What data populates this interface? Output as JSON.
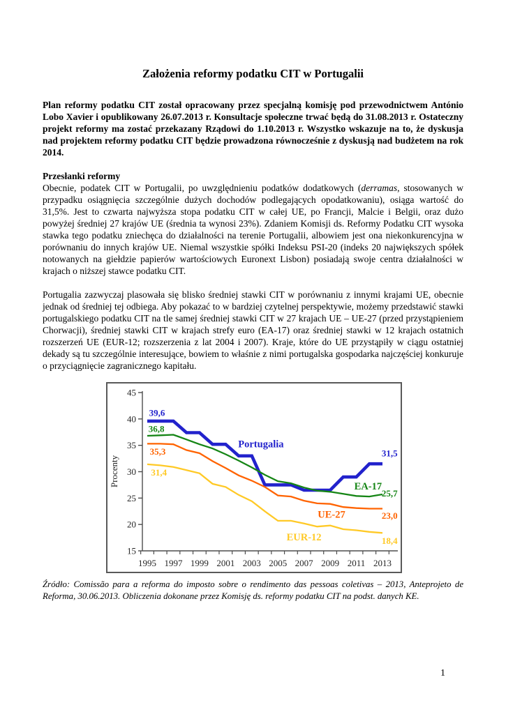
{
  "doc": {
    "title": "Założenia reformy podatku CIT w Portugalii",
    "intro": "Plan reformy podatku CIT został opracowany przez specjalną komisję pod przewodnictwem António Lobo Xavier i opublikowany 26.07.2013 r. Konsultacje społeczne trwać będą do 31.08.2013 r. Ostateczny projekt reformy ma zostać przekazany Rządowi do 1.10.2013 r. Wszystko wskazuje na to, że dyskusja nad projektem reformy podatku CIT będzie prowadzona równocześnie z dyskusją nad budżetem na rok 2014.",
    "section_heading": "Przesłanki reformy",
    "para1": {
      "before": "Obecnie, podatek CIT w Portugalii, po uwzględnieniu podatków dodatkowych (",
      "italic": "derramas",
      "after": ", stosowanych w przypadku osiągnięcia szczególnie dużych dochodów podlegających opodatkowaniu), osiąga wartość do 31,5%. Jest to czwarta najwyższa stopa podatku CIT w całej UE, po Francji, Malcie i Belgii, oraz dużo powyżej średniej 27 krajów UE (średnia ta wynosi 23%). Zdaniem Komisji ds. Reformy Podatku CIT wysoka stawka tego podatku zniechęca do działalności na terenie Portugalii, albowiem jest ona niekonkurencyjna w porównaniu do innych krajów UE. Niemal wszystkie spółki Indeksu PSI-20 (indeks 20 największych spółek notowanych na giełdzie papierów wartościowych Euronext Lisbon) posiadają swoje centra działalności w krajach o niższej stawce podatku CIT."
    },
    "para2": "Portugalia zazwyczaj plasowała się blisko średniej stawki CIT w porównaniu z innymi krajami UE, obecnie jednak od średniej tej odbiega. Aby pokazać to w bardziej czytelnej perspektywie, możemy przedstawić stawki portugalskiego podatku CIT na tle samej średniej stawki CIT w 27 krajach UE – UE-27 (przed przystąpieniem Chorwacji), średniej stawki CIT w krajach strefy euro (EA-17) oraz średniej stawki w 12 krajach ostatnich rozszerzeń UE (EUR-12; rozszerzenia z lat 2004 i 2007). Kraje, które do UE przystąpiły w ciągu ostatniej dekady są tu szczególnie interesujące, bowiem to właśnie z nimi portugalska gospodarka najczęściej konkuruje o przyciągnięcie zagranicznego kapitału.",
    "source": "Źródło: Comissão para a reforma do imposto sobre o rendimento das pessoas coletivas – 2013, Anteprojeto de Reforma, 30.06.2013. Obliczenia dokonane przez Komisję ds. reformy podatku CIT na podst. danych KE.",
    "page_number": "1"
  },
  "chart_data": {
    "type": "line",
    "title": "",
    "xlabel": "",
    "ylabel": "Procenty",
    "ylim": [
      15,
      45
    ],
    "yticks": [
      15,
      20,
      25,
      30,
      35,
      40,
      45
    ],
    "x": [
      1995,
      1996,
      1997,
      1998,
      1999,
      2000,
      2001,
      2002,
      2003,
      2004,
      2005,
      2006,
      2007,
      2008,
      2009,
      2010,
      2011,
      2012,
      2013
    ],
    "xtick_labels": [
      1995,
      1997,
      1999,
      2001,
      2003,
      2005,
      2007,
      2009,
      2011,
      2013
    ],
    "grid": false,
    "legend_position": "inline-labels",
    "axis_color": "#4d4d4d",
    "series": [
      {
        "name": "Portugalia",
        "color": "#2222cc",
        "width": 4.6,
        "values": [
          39.6,
          39.6,
          39.6,
          37.4,
          37.4,
          35.2,
          35.2,
          33.0,
          33.0,
          27.5,
          27.5,
          27.5,
          26.5,
          26.5,
          26.5,
          29.0,
          29.0,
          31.5,
          31.5
        ]
      },
      {
        "name": "EA-17",
        "color": "#158515",
        "width": 2.3,
        "values": [
          36.8,
          36.9,
          37.0,
          36.1,
          35.2,
          34.4,
          33.3,
          32.1,
          30.8,
          29.4,
          28.2,
          27.8,
          27.0,
          26.4,
          26.2,
          25.8,
          25.4,
          25.3,
          25.7
        ]
      },
      {
        "name": "UE-27",
        "color": "#ff6300",
        "width": 2.3,
        "values": [
          35.3,
          35.3,
          35.2,
          34.1,
          33.5,
          32.0,
          30.7,
          29.3,
          28.3,
          27.1,
          25.5,
          25.3,
          24.5,
          24.0,
          23.9,
          23.3,
          23.1,
          23.0,
          23.0
        ]
      },
      {
        "name": "EUR-12",
        "color": "#ffc926",
        "width": 2.3,
        "values": [
          31.4,
          31.2,
          30.9,
          30.3,
          29.7,
          27.7,
          27.1,
          25.6,
          24.4,
          22.5,
          20.7,
          20.7,
          20.2,
          19.6,
          19.8,
          19.1,
          18.9,
          18.6,
          18.4
        ]
      }
    ],
    "labels": [
      {
        "text": "39,6",
        "year": 1995.75,
        "value": 41.2,
        "color": "#2222cc",
        "big": false
      },
      {
        "text": "36,8",
        "year": 1995.7,
        "value": 38.1,
        "color": "#158515",
        "big": false
      },
      {
        "text": "35,3",
        "year": 1995.8,
        "value": 33.8,
        "color": "#ff6300",
        "big": false
      },
      {
        "text": "31,4",
        "year": 1995.9,
        "value": 29.9,
        "color": "#ffc926",
        "big": false
      },
      {
        "text": "Portugalia",
        "year": 2003.7,
        "value": 35.2,
        "color": "#2222cc",
        "big": true
      },
      {
        "text": "31,5",
        "year": 2013.55,
        "value": 33.5,
        "color": "#2222cc",
        "big": false
      },
      {
        "text": "EA-17",
        "year": 2011.9,
        "value": 27.2,
        "color": "#158515",
        "big": true
      },
      {
        "text": "25,7",
        "year": 2013.55,
        "value": 25.9,
        "color": "#158515",
        "big": false
      },
      {
        "text": "UE-27",
        "year": 2009.1,
        "value": 21.9,
        "color": "#ff6300",
        "big": true
      },
      {
        "text": "23,0",
        "year": 2013.55,
        "value": 21.7,
        "color": "#ff6300",
        "big": false
      },
      {
        "text": "EUR-12",
        "year": 2007.0,
        "value": 17.6,
        "color": "#ffc926",
        "big": true
      },
      {
        "text": "18,4",
        "year": 2013.55,
        "value": 16.9,
        "color": "#ffc926",
        "big": false
      }
    ]
  }
}
